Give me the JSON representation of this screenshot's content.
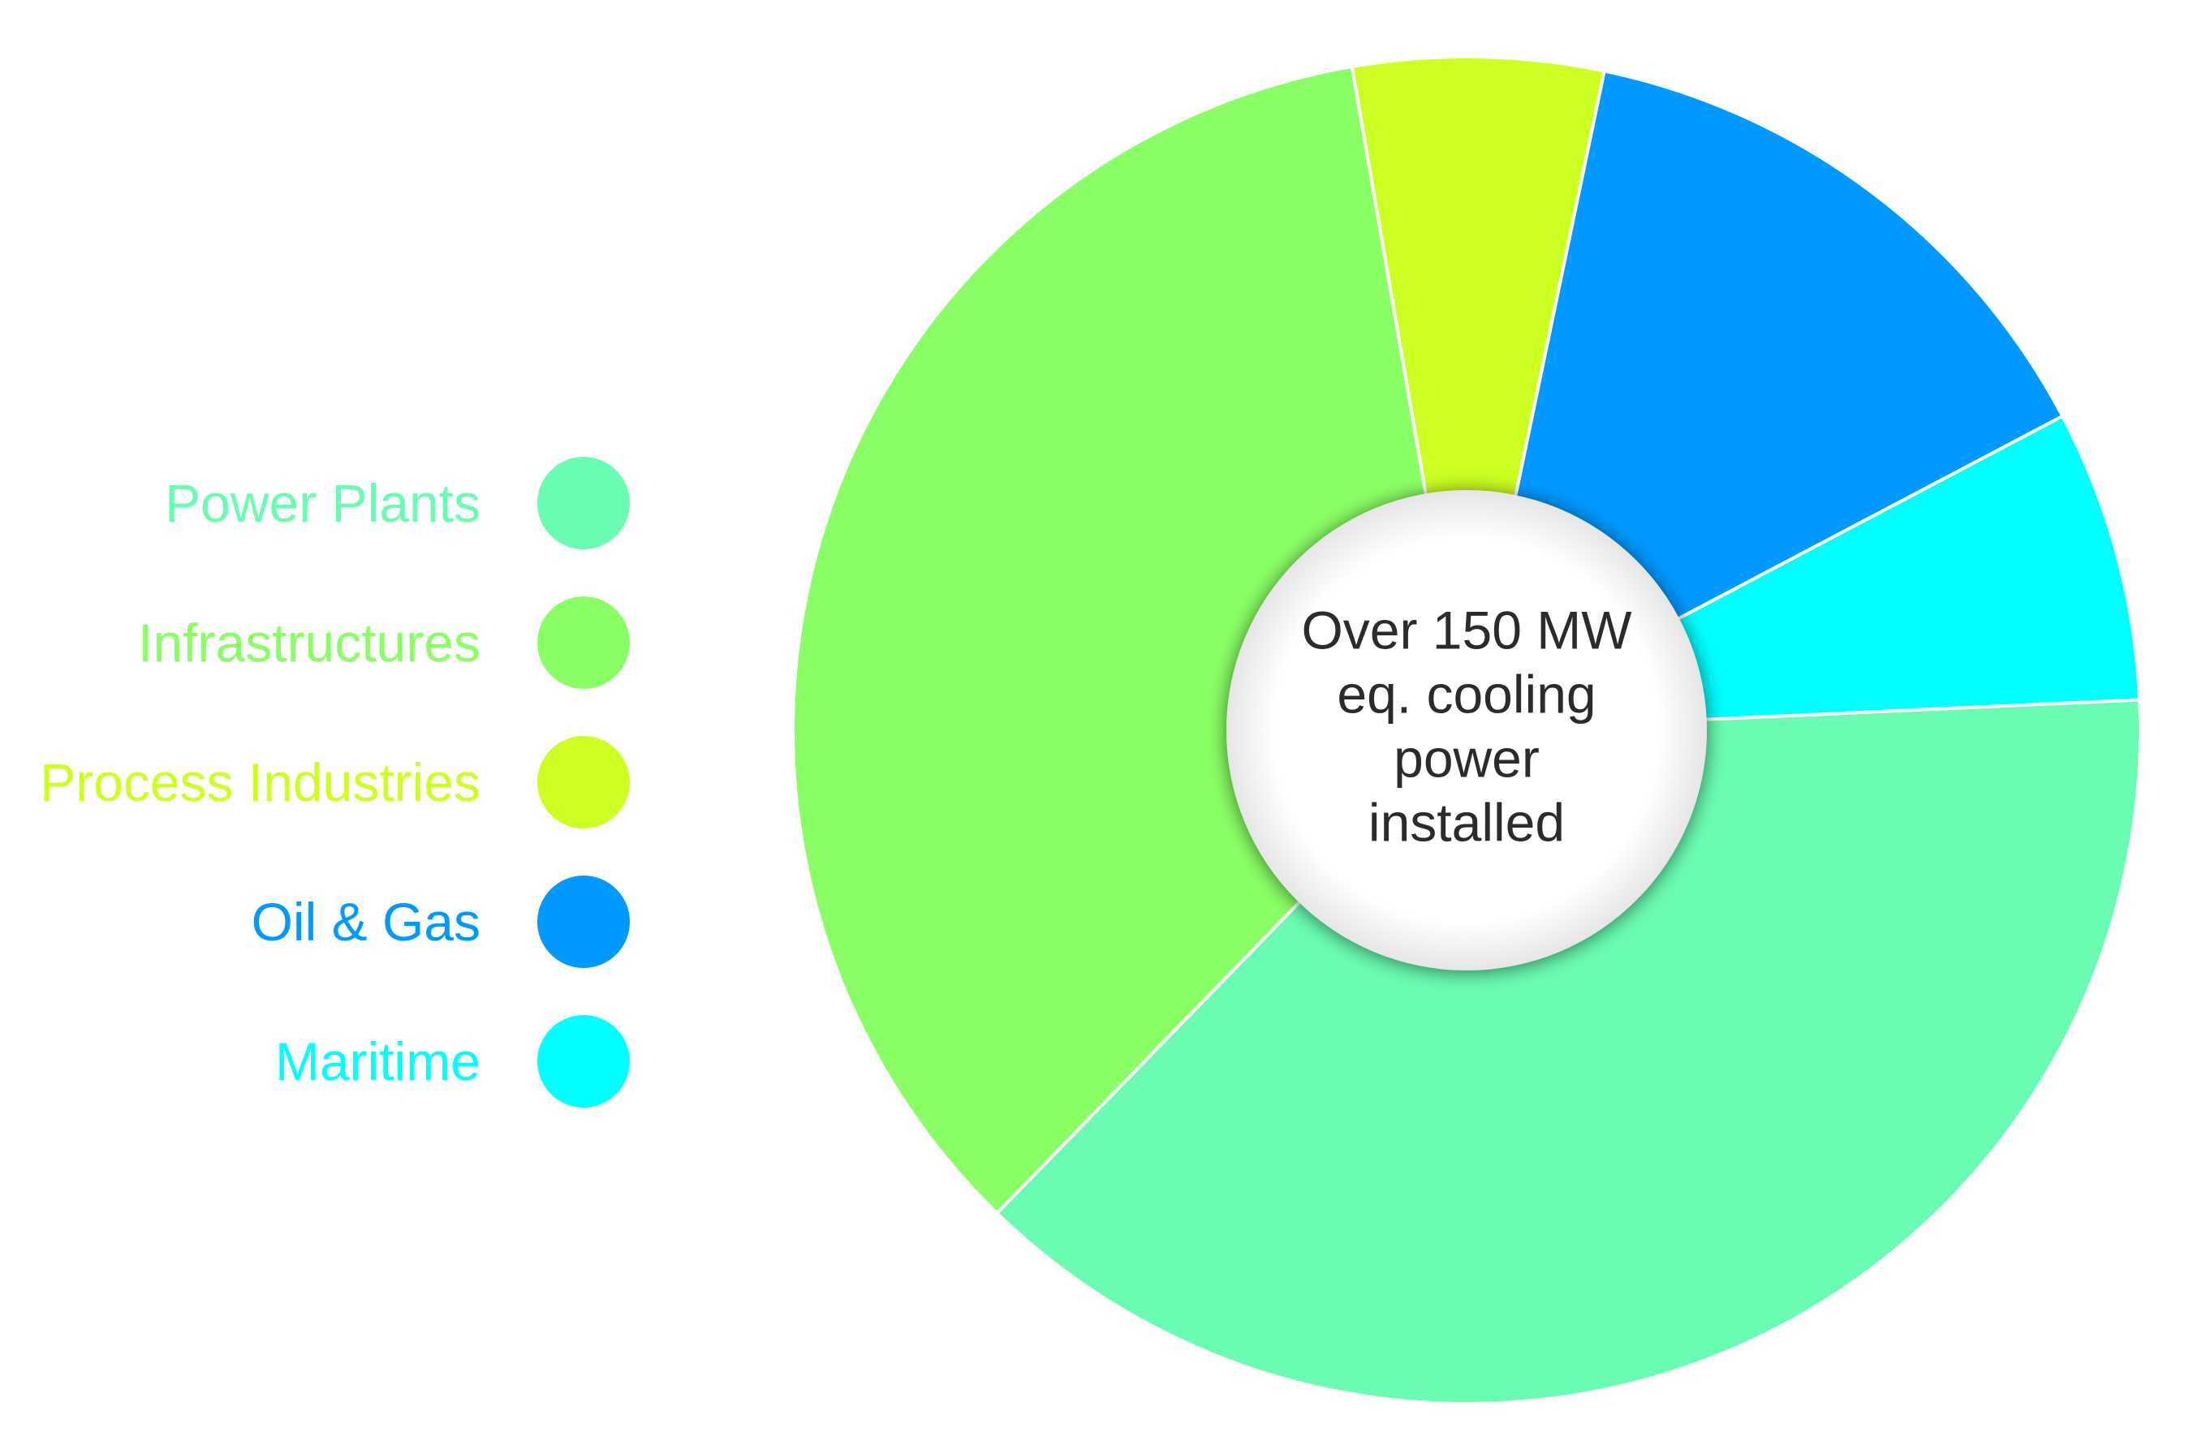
{
  "chart_data": {
    "type": "pie",
    "variant": "donut",
    "title": "",
    "center_label": [
      "Over 150 MW",
      "eq. cooling",
      "power",
      "installed"
    ],
    "legend_placement": "left",
    "series": [
      {
        "name": "Power Plants",
        "value": 38,
        "color": "#6AFCB2"
      },
      {
        "name": "Infrastructures",
        "value": 35,
        "color": "#8AFF65"
      },
      {
        "name": "Process Industries",
        "value": 6,
        "color": "#CCFF22"
      },
      {
        "name": "Oil & Gas",
        "value": 14,
        "color": "#0099FF"
      },
      {
        "name": "Maritime",
        "value": 7,
        "color": "#00FFFF"
      }
    ]
  }
}
